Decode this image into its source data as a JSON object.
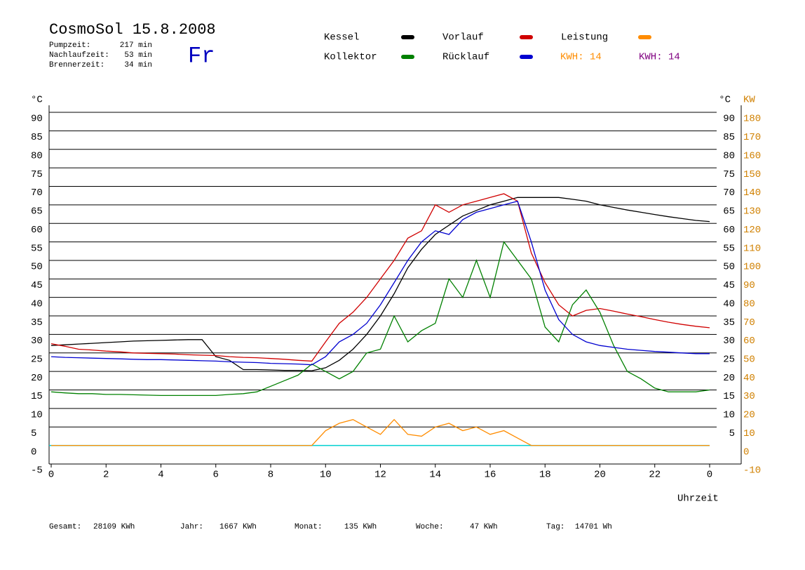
{
  "chart_data": {
    "type": "line",
    "title": "CosmoSol 15.8.2008",
    "day": "Fr",
    "stats": [
      {
        "label": "Pumpzeit:",
        "value": "217 min"
      },
      {
        "label": "Nachlaufzeit:",
        "value": "53 min"
      },
      {
        "label": "Brennerzeit:",
        "value": "34 min"
      }
    ],
    "legend_notes": [
      {
        "text": "KWH: 14",
        "color": "#ff8c00"
      },
      {
        "text": "KWH: 14",
        "color": "#800080"
      }
    ],
    "totals": [
      {
        "label": "Gesamt:",
        "value": "28109 KWh"
      },
      {
        "label": "Jahr:",
        "value": "1667 KWh"
      },
      {
        "label": "Monat:",
        "value": "135 KWh"
      },
      {
        "label": "Woche:",
        "value": "47 KWh"
      },
      {
        "label": "Tag:",
        "value": "14701 Wh"
      }
    ],
    "x_label": "Uhrzeit",
    "y_label": "°C",
    "y_label_right": "°C",
    "y2_label": "KW",
    "xlim": [
      0,
      24
    ],
    "xticks": [
      0,
      2,
      4,
      6,
      8,
      10,
      12,
      14,
      16,
      18,
      20,
      22,
      {
        "value": 24,
        "label": "0"
      }
    ],
    "ylim": [
      -5,
      90
    ],
    "yticks": [
      -5,
      0,
      5,
      10,
      15,
      20,
      25,
      30,
      35,
      40,
      45,
      50,
      55,
      60,
      65,
      70,
      75,
      80,
      85,
      90
    ],
    "right_yticks": [
      5,
      10,
      15,
      20,
      25,
      30,
      35,
      40,
      45,
      50,
      55,
      60,
      65,
      70,
      75,
      80,
      85,
      90
    ],
    "y2lim": [
      -10,
      180
    ],
    "y2ticks": [
      -10,
      0,
      10,
      20,
      30,
      40,
      50,
      60,
      70,
      80,
      90,
      100,
      110,
      120,
      130,
      140,
      150,
      160,
      170,
      180
    ],
    "grid": true,
    "x": [
      0,
      0.5,
      1,
      1.5,
      2,
      2.5,
      3,
      3.5,
      4,
      4.5,
      5,
      5.5,
      6,
      6.5,
      7,
      7.5,
      8,
      8.5,
      9,
      9.5,
      10,
      10.5,
      11,
      11.5,
      12,
      12.5,
      13,
      13.5,
      14,
      14.5,
      15,
      15.5,
      16,
      16.5,
      17,
      17.5,
      18,
      18.5,
      19,
      19.5,
      20,
      20.5,
      21,
      21.5,
      22,
      22.5,
      23,
      23.5,
      24
    ],
    "series": [
      {
        "name": "Kessel",
        "color": "#000000",
        "values": [
          27,
          27.2,
          27.4,
          27.6,
          27.8,
          28,
          28.2,
          28.3,
          28.4,
          28.5,
          28.6,
          28.6,
          24,
          23,
          20.5,
          20.5,
          20.4,
          20.3,
          20.3,
          20.2,
          21,
          23,
          26,
          30,
          35,
          41,
          48,
          53,
          57,
          59.5,
          62,
          63.5,
          65,
          66,
          67,
          67,
          67,
          67,
          66.5,
          66,
          65,
          64.3,
          63.6,
          63,
          62.4,
          61.8,
          61.3,
          60.8,
          60.5
        ]
      },
      {
        "name": "Vorlauf",
        "color": "#d00000",
        "values": [
          27.5,
          26.8,
          26,
          25.8,
          25.5,
          25.3,
          25,
          24.9,
          24.8,
          24.7,
          24.5,
          24.4,
          24.3,
          24,
          23.8,
          23.7,
          23.5,
          23.3,
          23,
          22.8,
          28,
          33,
          36,
          40,
          45,
          50,
          56,
          58,
          65,
          63,
          65,
          66,
          67,
          68,
          66,
          52,
          44,
          38,
          35,
          36.5,
          37,
          36.3,
          35.5,
          34.8,
          34,
          33.3,
          32.7,
          32.2,
          31.8
        ]
      },
      {
        "name": "Leistung",
        "color": "#ff8c00",
        "axis": "y2",
        "values": [
          0,
          0,
          0,
          0,
          0,
          0,
          0,
          0,
          0,
          0,
          0,
          0,
          0,
          0,
          0,
          0,
          0,
          0,
          0,
          0,
          8,
          12,
          14,
          10,
          6,
          14,
          6,
          5,
          10,
          12,
          8,
          10,
          6,
          8,
          4,
          0,
          0,
          0,
          0,
          0,
          0,
          0,
          0,
          0,
          0,
          0,
          0,
          0,
          0
        ]
      },
      {
        "name": "Kollektor",
        "color": "#008000",
        "values": [
          14.5,
          14.2,
          14,
          14,
          13.8,
          13.8,
          13.7,
          13.6,
          13.5,
          13.5,
          13.5,
          13.5,
          13.5,
          13.8,
          14,
          14.5,
          16,
          17.5,
          19,
          22,
          20,
          18,
          20,
          25,
          26,
          35,
          28,
          31,
          33,
          45,
          40,
          50,
          40,
          55,
          50,
          45,
          32,
          28,
          38,
          42,
          36,
          27,
          20,
          18,
          15.5,
          14.5,
          14.5,
          14.5,
          15
        ]
      },
      {
        "name": "Rücklauf",
        "color": "#0000d0",
        "values": [
          24,
          23.8,
          23.7,
          23.6,
          23.5,
          23.4,
          23.3,
          23.2,
          23.2,
          23.1,
          23,
          22.9,
          22.8,
          22.6,
          22.5,
          22.4,
          22.2,
          22.1,
          22,
          21.8,
          24,
          28,
          30,
          33,
          38,
          44,
          50,
          55,
          58,
          57,
          61,
          63,
          64,
          65,
          66,
          55,
          42,
          34,
          30,
          28,
          27,
          26.5,
          26,
          25.7,
          25.4,
          25.2,
          25,
          24.8,
          24.8
        ]
      }
    ]
  }
}
